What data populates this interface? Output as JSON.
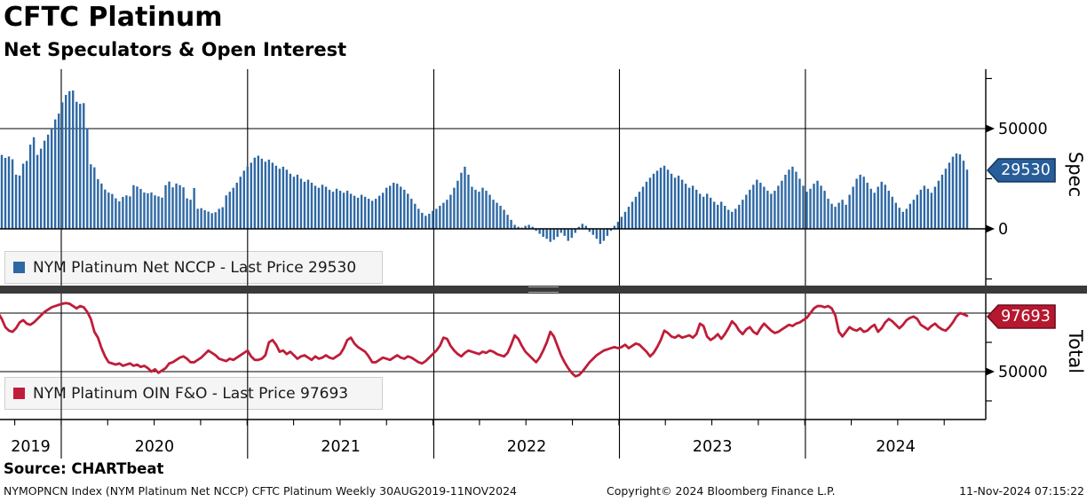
{
  "header": {
    "title": "CFTC Platinum",
    "subtitle": "Net Speculators & Open Interest"
  },
  "source_line": "Source: CHARTbeat",
  "footer": {
    "left": "NYMOPNCN Index (NYM Platinum Net NCCP) CFTC Platinum  Weekly 30AUG2019-11NOV2024",
    "center": "Copyright© 2024 Bloomberg Finance L.P.",
    "right": "11-Nov-2024 07:15:22"
  },
  "x_axis": {
    "years": [
      "2019",
      "2020",
      "2021",
      "2022",
      "2023",
      "2024"
    ],
    "frequency": "Weekly",
    "range_start": "30AUG2019",
    "range_end": "11NOV2024"
  },
  "chart_data": [
    {
      "type": "bar",
      "name": "NYM Platinum Net NCCP",
      "legend": "NYM Platinum Net NCCP - Last Price 29530",
      "last_price": 29530,
      "last_price_label": "29530",
      "axis_label": "Spec",
      "color": "#2e68a4",
      "tag_fill": "#275d99",
      "tag_stroke": "#14365c",
      "ylim": [
        -30000,
        80000
      ],
      "yticks": [
        {
          "v": 0,
          "label": "0"
        },
        {
          "v": 50000,
          "label": "50000"
        }
      ],
      "minor_yticks": [
        -25000,
        25000,
        75000
      ],
      "gridline_values": [
        50000
      ],
      "values": [
        36100,
        36900,
        35400,
        36100,
        34700,
        27000,
        26600,
        32500,
        33900,
        42000,
        45700,
        36900,
        40000,
        44000,
        47000,
        50000,
        54600,
        57500,
        63100,
        66800,
        68700,
        69000,
        63400,
        62400,
        62700,
        50100,
        32200,
        30700,
        24800,
        22600,
        19600,
        18100,
        17400,
        15200,
        13700,
        15900,
        16700,
        16200,
        21800,
        21100,
        19900,
        18100,
        17700,
        18100,
        16700,
        16200,
        15600,
        21800,
        23600,
        20700,
        22600,
        21800,
        20700,
        15200,
        14500,
        20400,
        10000,
        10300,
        9300,
        8600,
        7800,
        8300,
        10000,
        10800,
        16700,
        18500,
        20500,
        23000,
        26000,
        29000,
        31000,
        33000,
        35500,
        36500,
        35000,
        33500,
        34500,
        33000,
        31500,
        30000,
        31000,
        29500,
        27500,
        26000,
        27000,
        25000,
        23500,
        24500,
        23000,
        21500,
        20500,
        22000,
        21000,
        19500,
        18500,
        20000,
        19000,
        18000,
        19000,
        17500,
        16500,
        15500,
        17000,
        16000,
        15000,
        14000,
        15000,
        16500,
        18000,
        20500,
        21500,
        23000,
        22500,
        21000,
        19500,
        17500,
        15000,
        12500,
        10000,
        8000,
        6500,
        7500,
        9000,
        10000,
        11500,
        13000,
        14500,
        17000,
        20500,
        24000,
        28000,
        31000,
        27000,
        21000,
        19500,
        18500,
        20500,
        19000,
        17000,
        14500,
        13000,
        11500,
        9500,
        7000,
        4500,
        2000,
        1000,
        600,
        1500,
        2000,
        1000,
        -1000,
        -2500,
        -4000,
        -5000,
        -6500,
        -5500,
        -4000,
        -2000,
        -3500,
        -6000,
        -4500,
        -2000,
        1000,
        2500,
        1500,
        -1500,
        -3000,
        -5000,
        -7500,
        -6000,
        -3500,
        -1000,
        1500,
        3500,
        6000,
        8500,
        11000,
        13500,
        16000,
        18500,
        21000,
        23500,
        25500,
        27500,
        29000,
        30500,
        31500,
        29500,
        27500,
        25500,
        26500,
        24500,
        22500,
        20500,
        21500,
        19500,
        17500,
        16000,
        17500,
        15500,
        13500,
        12000,
        13500,
        11500,
        9500,
        8500,
        10000,
        12000,
        14500,
        17000,
        19500,
        22000,
        24500,
        23000,
        21000,
        19000,
        17500,
        19000,
        21500,
        24000,
        27000,
        29500,
        31000,
        28500,
        25000,
        21500,
        18500,
        20000,
        22500,
        24000,
        21500,
        19000,
        15000,
        12500,
        11000,
        13000,
        14500,
        12000,
        17000,
        21000,
        25000,
        27000,
        26000,
        23000,
        20000,
        18000,
        21000,
        23500,
        22000,
        19000,
        16000,
        13000,
        10500,
        8500,
        10000,
        12500,
        14500,
        17000,
        19500,
        21500,
        20000,
        18000,
        21000,
        24000,
        27000,
        30000,
        33000,
        36000,
        37600,
        37200,
        34000,
        29530
      ]
    },
    {
      "type": "line",
      "name": "NYM Platinum OIN F&O",
      "legend": "NYM Platinum OIN F&O - Last Price 97693",
      "last_price": 97693,
      "last_price_label": "97693",
      "axis_label": "Total",
      "color": "#bf1d39",
      "tag_fill": "#b5182f",
      "tag_stroke": "#6e0c1e",
      "ylim": [
        12000,
        112000
      ],
      "yticks": [
        {
          "v": 50000,
          "label": "50000"
        }
      ],
      "minor_yticks": [
        25000,
        75000,
        100000
      ],
      "gridline_values": [
        50000,
        100000
      ],
      "values": [
        100000,
        95000,
        88000,
        85000,
        84000,
        87000,
        92000,
        94000,
        91000,
        90000,
        92000,
        95000,
        98000,
        101000,
        103000,
        105000,
        106000,
        107000,
        108000,
        108500,
        108000,
        106000,
        104000,
        106000,
        105000,
        101000,
        95000,
        84000,
        79000,
        70000,
        63000,
        58000,
        57000,
        56000,
        57000,
        55000,
        56000,
        57000,
        55000,
        56000,
        54000,
        55000,
        53000,
        50000,
        52000,
        49000,
        51000,
        53000,
        57000,
        58000,
        60000,
        62000,
        63000,
        61000,
        58000,
        58000,
        60000,
        62000,
        65000,
        68000,
        66000,
        64000,
        61000,
        60000,
        59000,
        61000,
        60000,
        62000,
        64000,
        66000,
        68000,
        63000,
        60000,
        60000,
        61000,
        64000,
        75000,
        77000,
        73000,
        67000,
        68000,
        65000,
        67000,
        64000,
        61000,
        63000,
        64000,
        62000,
        60000,
        63000,
        61000,
        62000,
        64000,
        62000,
        61000,
        63000,
        65000,
        70000,
        77000,
        79000,
        74000,
        71000,
        69000,
        67000,
        63000,
        58000,
        58000,
        60000,
        62000,
        61000,
        60000,
        62000,
        64000,
        62000,
        61000,
        63000,
        62000,
        60000,
        58000,
        57000,
        59000,
        62000,
        65000,
        68000,
        72000,
        79000,
        78000,
        72000,
        68000,
        65000,
        63000,
        66000,
        68000,
        67000,
        66000,
        65000,
        67000,
        66000,
        68000,
        67000,
        65000,
        64000,
        63000,
        66000,
        73000,
        81000,
        78000,
        72000,
        67000,
        64000,
        61000,
        58000,
        62000,
        68000,
        75000,
        84000,
        80000,
        72000,
        64000,
        58000,
        53000,
        49000,
        46000,
        47000,
        50000,
        54000,
        58000,
        61000,
        64000,
        66000,
        68000,
        69000,
        70000,
        71000,
        70000,
        71000,
        73000,
        70000,
        72000,
        74000,
        73000,
        70000,
        67000,
        63000,
        66000,
        71000,
        77000,
        85000,
        83000,
        80000,
        79000,
        81000,
        79000,
        80000,
        81000,
        79000,
        82000,
        91000,
        89000,
        80000,
        77000,
        79000,
        82000,
        78000,
        82000,
        87000,
        93000,
        90000,
        85000,
        82000,
        86000,
        88000,
        84000,
        82000,
        87000,
        91000,
        88000,
        85000,
        83000,
        84000,
        86000,
        88000,
        90000,
        89000,
        91000,
        92000,
        94000,
        96000,
        100000,
        104000,
        106000,
        106000,
        105000,
        106000,
        104000,
        98000,
        84000,
        80000,
        84000,
        88000,
        86000,
        85000,
        87000,
        84000,
        85000,
        88000,
        90000,
        84000,
        87000,
        92000,
        95000,
        93000,
        90000,
        87000,
        90000,
        94000,
        96000,
        97000,
        95000,
        90000,
        88000,
        86000,
        89000,
        91000,
        88000,
        86000,
        85000,
        88000,
        92000,
        97000,
        100000,
        99000,
        97693
      ]
    }
  ]
}
